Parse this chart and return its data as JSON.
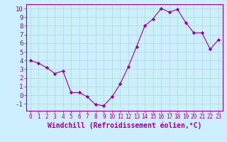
{
  "x": [
    0,
    1,
    2,
    3,
    4,
    5,
    6,
    7,
    8,
    9,
    10,
    11,
    12,
    13,
    14,
    15,
    16,
    17,
    18,
    19,
    20,
    21,
    22,
    23
  ],
  "y": [
    4.0,
    3.7,
    3.2,
    2.5,
    2.8,
    0.3,
    0.3,
    -0.2,
    -1.1,
    -1.2,
    -0.2,
    1.3,
    3.3,
    5.6,
    8.0,
    8.8,
    10.0,
    9.6,
    9.9,
    8.4,
    7.2,
    7.2,
    5.3,
    6.4
  ],
  "line_color": "#990099",
  "marker": "D",
  "marker_size": 2.2,
  "bg_color": "#cceeff",
  "grid_color": "#aaddcc",
  "xlabel": "Windchill (Refroidissement éolien,°C)",
  "ylim": [
    -1.8,
    10.5
  ],
  "xlim": [
    -0.5,
    23.5
  ],
  "yticks": [
    -1,
    0,
    1,
    2,
    3,
    4,
    5,
    6,
    7,
    8,
    9,
    10
  ],
  "xticks": [
    0,
    1,
    2,
    3,
    4,
    5,
    6,
    7,
    8,
    9,
    10,
    11,
    12,
    13,
    14,
    15,
    16,
    17,
    18,
    19,
    20,
    21,
    22,
    23
  ],
  "tick_color": "#990099",
  "label_color": "#990099",
  "axis_color": "#990099",
  "spine_color": "#990099",
  "xtick_fontsize": 5.5,
  "ytick_fontsize": 6.5,
  "xlabel_fontsize": 7.0
}
